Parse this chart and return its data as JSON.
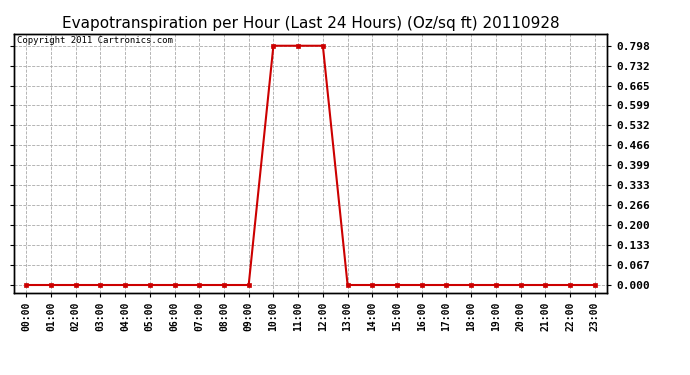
{
  "title": "Evapotranspiration per Hour (Last 24 Hours) (Oz/sq ft) 20110928",
  "copyright_text": "Copyright 2011 Cartronics.com",
  "x_labels": [
    "00:00",
    "01:00",
    "02:00",
    "03:00",
    "04:00",
    "05:00",
    "06:00",
    "07:00",
    "08:00",
    "09:00",
    "10:00",
    "11:00",
    "12:00",
    "13:00",
    "14:00",
    "15:00",
    "16:00",
    "17:00",
    "18:00",
    "19:00",
    "20:00",
    "21:00",
    "22:00",
    "23:00"
  ],
  "y_values": [
    0.0,
    0.0,
    0.0,
    0.0,
    0.0,
    0.0,
    0.0,
    0.0,
    0.0,
    0.0,
    0.798,
    0.798,
    0.798,
    0.0,
    0.0,
    0.0,
    0.0,
    0.0,
    0.0,
    0.0,
    0.0,
    0.0,
    0.0,
    0.0
  ],
  "y_ticks": [
    0.0,
    0.067,
    0.133,
    0.2,
    0.266,
    0.333,
    0.399,
    0.466,
    0.532,
    0.599,
    0.665,
    0.732,
    0.798
  ],
  "line_color": "#cc0000",
  "marker_color": "#cc0000",
  "bg_color": "#ffffff",
  "grid_color": "#aaaaaa",
  "title_fontsize": 11,
  "copyright_fontsize": 6.5,
  "ylabel_fontsize": 8,
  "xlabel_fontsize": 7,
  "ylim_min": -0.025,
  "ylim_max": 0.838
}
